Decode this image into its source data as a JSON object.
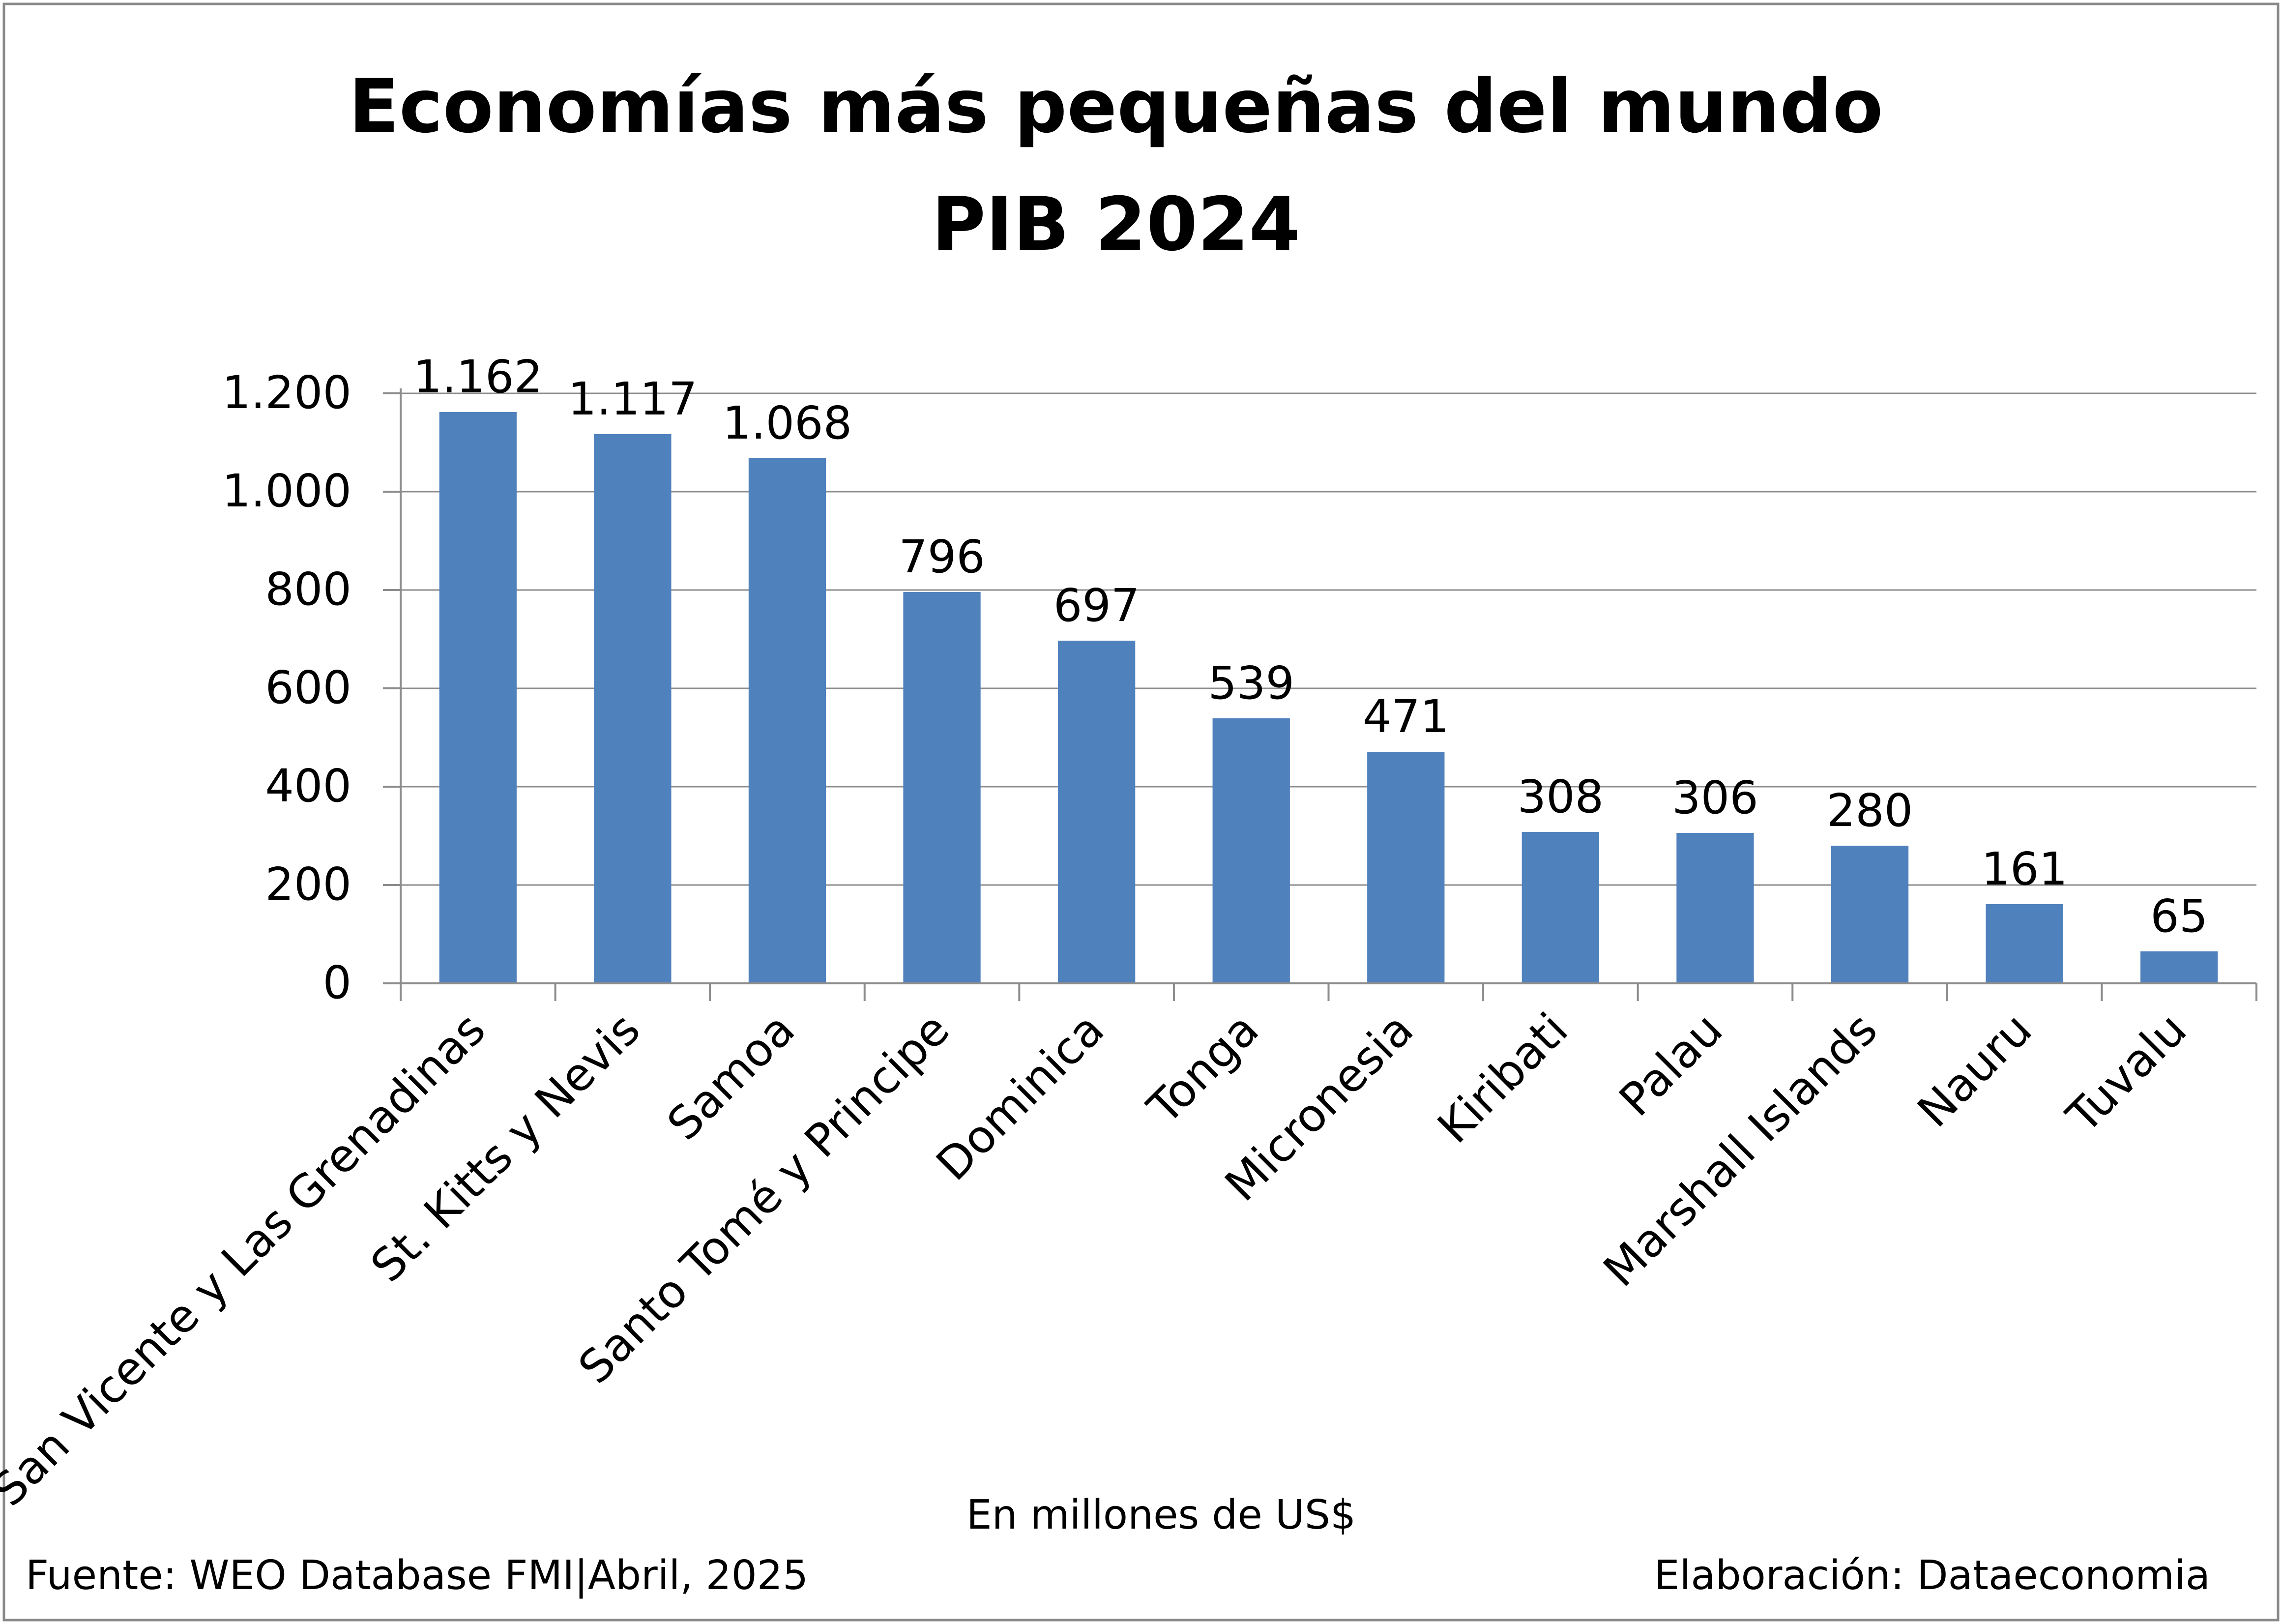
{
  "chart_data": {
    "type": "bar",
    "title_line1": "Economías más pequeñas del mundo",
    "title_line2": "PIB 2024",
    "categories": [
      "San Vicente y Las Grenadinas",
      "St. Kitts y Nevis",
      "Samoa",
      "Santo Tomé y Principe",
      "Dominica",
      "Tonga",
      "Micronesia",
      "Kiribati",
      "Palau",
      "Marshall Islands",
      "Nauru",
      "Tuvalu"
    ],
    "values": [
      1162,
      1117,
      1068,
      796,
      697,
      539,
      471,
      308,
      306,
      280,
      161,
      65
    ],
    "data_labels": [
      "1.162",
      "1.117",
      "1.068",
      "796",
      "697",
      "539",
      "471",
      "308",
      "306",
      "280",
      "161",
      "65"
    ],
    "ylim": [
      0,
      1200
    ],
    "yticks": [
      0,
      200,
      400,
      600,
      800,
      1000,
      1200
    ],
    "ytick_labels": [
      "0",
      "200",
      "400",
      "600",
      "800",
      "1.000",
      "1.200"
    ],
    "xlabel": "En millones de US$",
    "ylabel": "",
    "grid": true,
    "legend": "none",
    "bar_color": "#4F81BD",
    "source_note": "Fuente: WEO Database FMI|Abril, 2025",
    "credit_note": "Elaboración: Dataeconomia"
  }
}
